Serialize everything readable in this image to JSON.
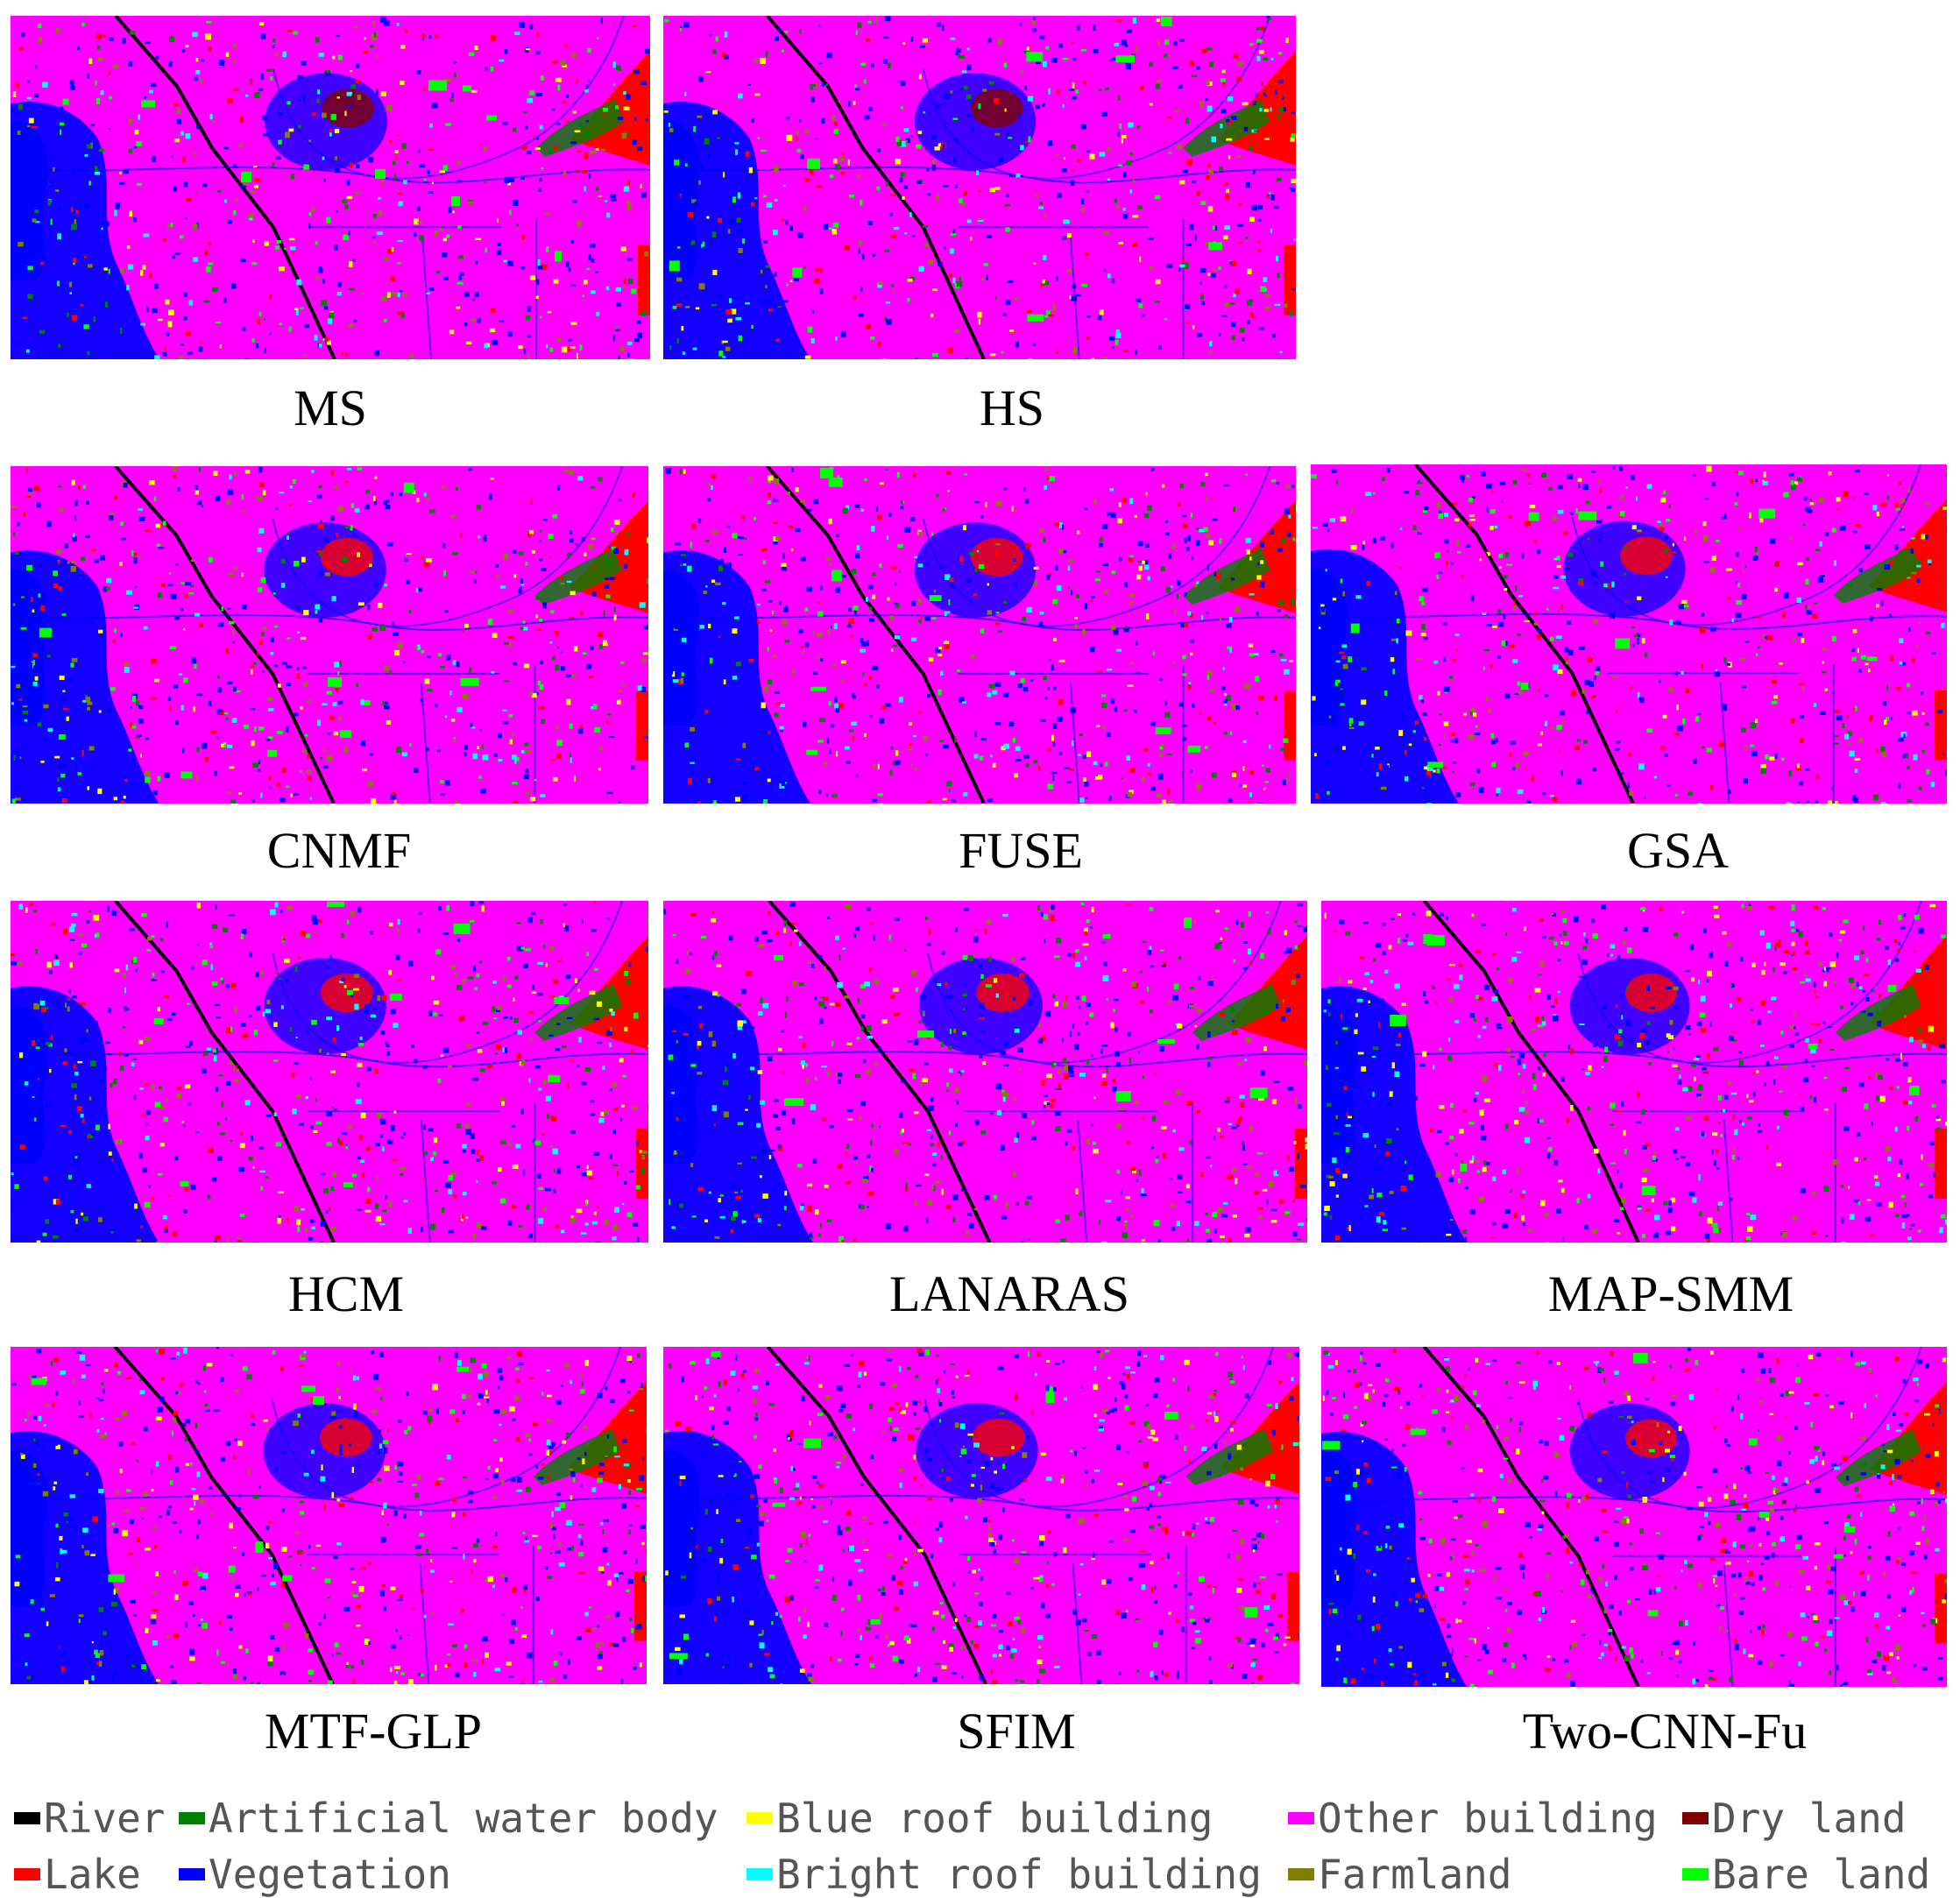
{
  "panels": [
    {
      "label": "MS"
    },
    {
      "label": "HS"
    },
    {
      "label": "CNMF"
    },
    {
      "label": "FUSE"
    },
    {
      "label": "GSA"
    },
    {
      "label": "HCM"
    },
    {
      "label": "LANARAS"
    },
    {
      "label": "MAP-SMM"
    },
    {
      "label": "MTF-GLP"
    },
    {
      "label": "SFIM"
    },
    {
      "label": "Two-CNN-Fu"
    }
  ],
  "legend": [
    {
      "label": "River",
      "color": "#000000"
    },
    {
      "label": "Artificial water body",
      "color": "#008000"
    },
    {
      "label": "Blue roof building",
      "color": "#ffff00"
    },
    {
      "label": "Other building",
      "color": "#ff00ff"
    },
    {
      "label": "Dry land",
      "color": "#800000"
    },
    {
      "label": "Lake",
      "color": "#ff0000"
    },
    {
      "label": "Vegetation",
      "color": "#0000ff"
    },
    {
      "label": "Bright roof building",
      "color": "#00ffff"
    },
    {
      "label": "Farmland",
      "color": "#808000"
    },
    {
      "label": "Bare land",
      "color": "#00ff00"
    }
  ]
}
